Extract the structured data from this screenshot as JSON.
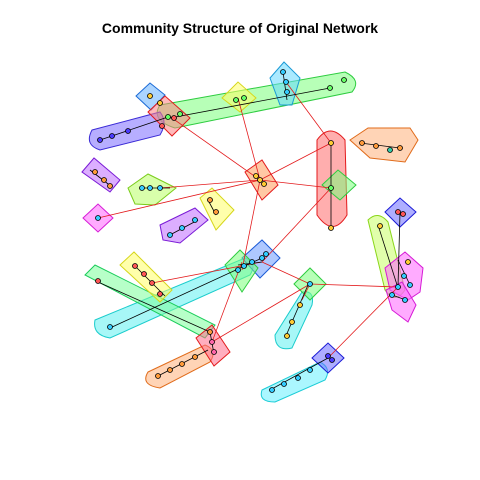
{
  "title": "Community Structure of Original Network",
  "colors": {
    "inter_edge": "#e31a1c",
    "intra_edge": "#000000",
    "blue": "#7b86ff",
    "red": "#ff6b6b",
    "green": "#7cff7c",
    "yellow": "#ffff66",
    "cyan": "#5ef0f0",
    "orange": "#ffb07a",
    "purple": "#b07bff",
    "magenta": "#ff66ff",
    "lime": "#b9ff66",
    "lightblue": "#66c8ff",
    "seagreen": "#66ffb0"
  },
  "communities": [
    "green-long-top",
    "blue-left",
    "cyan-top-right",
    "blue-small-top",
    "yellow-small-top",
    "red-small-top",
    "orange-right",
    "red-tall",
    "green-diamond",
    "purple-left",
    "lime-left",
    "magenta-small",
    "purple-mid",
    "yellow-mid",
    "orange-center-red",
    "blue-right-small",
    "lime-right-tall",
    "magenta-right",
    "cyan-long-mid",
    "green-long-mid",
    "yellow-long",
    "blue-mid",
    "green-small-mid",
    "cyan-small",
    "orange-bottom",
    "red-bottom",
    "cyan-bottom",
    "purple-bottom-small",
    "green-small-right"
  ]
}
